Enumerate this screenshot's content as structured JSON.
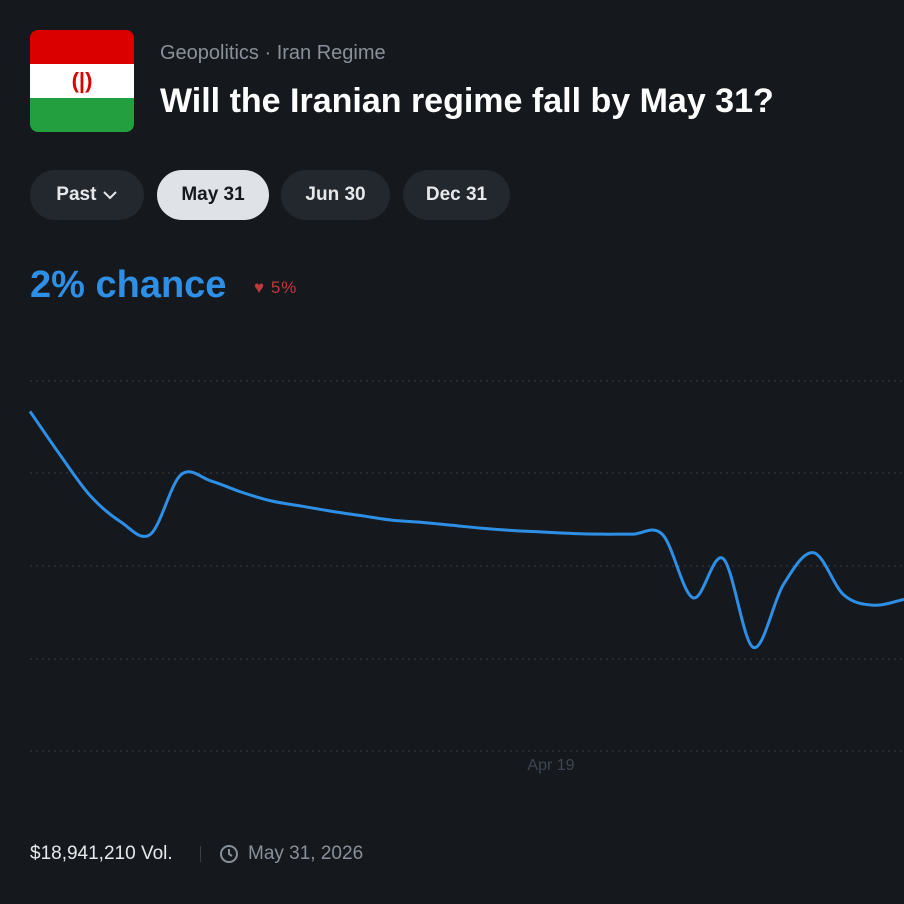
{
  "header": {
    "category": "Geopolitics",
    "subcategory": "Iran Regime",
    "title": "Will the Iranian regime fall by May 31?"
  },
  "tabs": [
    "Past",
    "May 31",
    "Jun 30",
    "Dec 31"
  ],
  "chance": {
    "text": "2% chance",
    "change": "5%"
  },
  "chart_data": {
    "type": "line",
    "x_label": "Apr 19",
    "color": "#2e8fe6",
    "ylim": [
      0,
      5
    ],
    "values": [
      4.59,
      4.0,
      3.45,
      3.1,
      2.93,
      3.73,
      3.65,
      3.5,
      3.38,
      3.31,
      3.24,
      3.18,
      3.12,
      3.09,
      3.05,
      3.01,
      2.98,
      2.96,
      2.94,
      2.93,
      2.93,
      2.92,
      2.07,
      2.6,
      1.4,
      2.25,
      2.68,
      2.11,
      1.97,
      2.05
    ]
  },
  "footer": {
    "volume": "$18,941,210 Vol.",
    "end_date": "May 31, 2026"
  }
}
